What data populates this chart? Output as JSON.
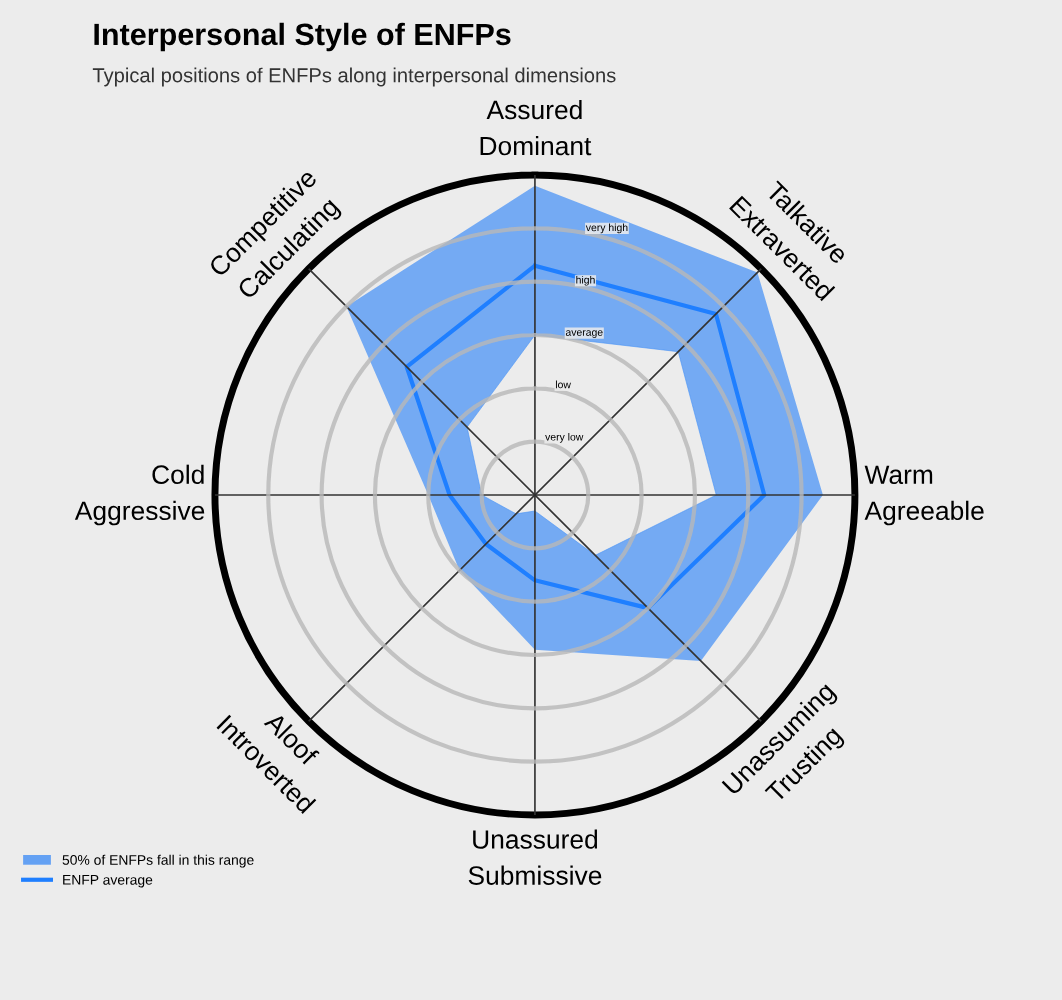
{
  "chart_data": {
    "type": "radar",
    "title": "Interpersonal Style of ENFPs",
    "subtitle": "Typical positions of ENFPs along interpersonal dimensions",
    "categories": [
      "Assured\nDominant",
      "Talkative\nExtraverted",
      "Warm\nAgreeable",
      "Unassuming\nTrusting",
      "Unassured\nSubmissive",
      "Aloof\nIntroverted",
      "Cold\nAggressive",
      "Competitive\nCalculating"
    ],
    "series": [
      {
        "type": "area",
        "color": "#4c94f5",
        "values": [
          5.8,
          5.9,
          5.4,
          4.4,
          2.9,
          2.0,
          2.0,
          5.0
        ]
      },
      {
        "type": "area",
        "color": "#4c94f5",
        "values": [
          3.0,
          3.8,
          3.4,
          1.6,
          0.3,
          0.5,
          1.0,
          1.8
        ]
      },
      {
        "name": "ENFP average",
        "color": "#1f7fff",
        "values": [
          4.3,
          4.8,
          4.3,
          3.0,
          1.6,
          1.3,
          1.6,
          3.4
        ]
      }
    ],
    "ylim": [
      0,
      6
    ],
    "yticks": [
      {
        "value": 1,
        "label": "very low"
      },
      {
        "value": 2,
        "label": "low"
      },
      {
        "value": 3,
        "label": "average"
      },
      {
        "value": 4,
        "label": "high"
      },
      {
        "value": 5,
        "label": "very high"
      }
    ],
    "grid": true,
    "legend": "bottom left",
    "annotations": [
      "50% of ENFPs fall in this range"
    ]
  }
}
